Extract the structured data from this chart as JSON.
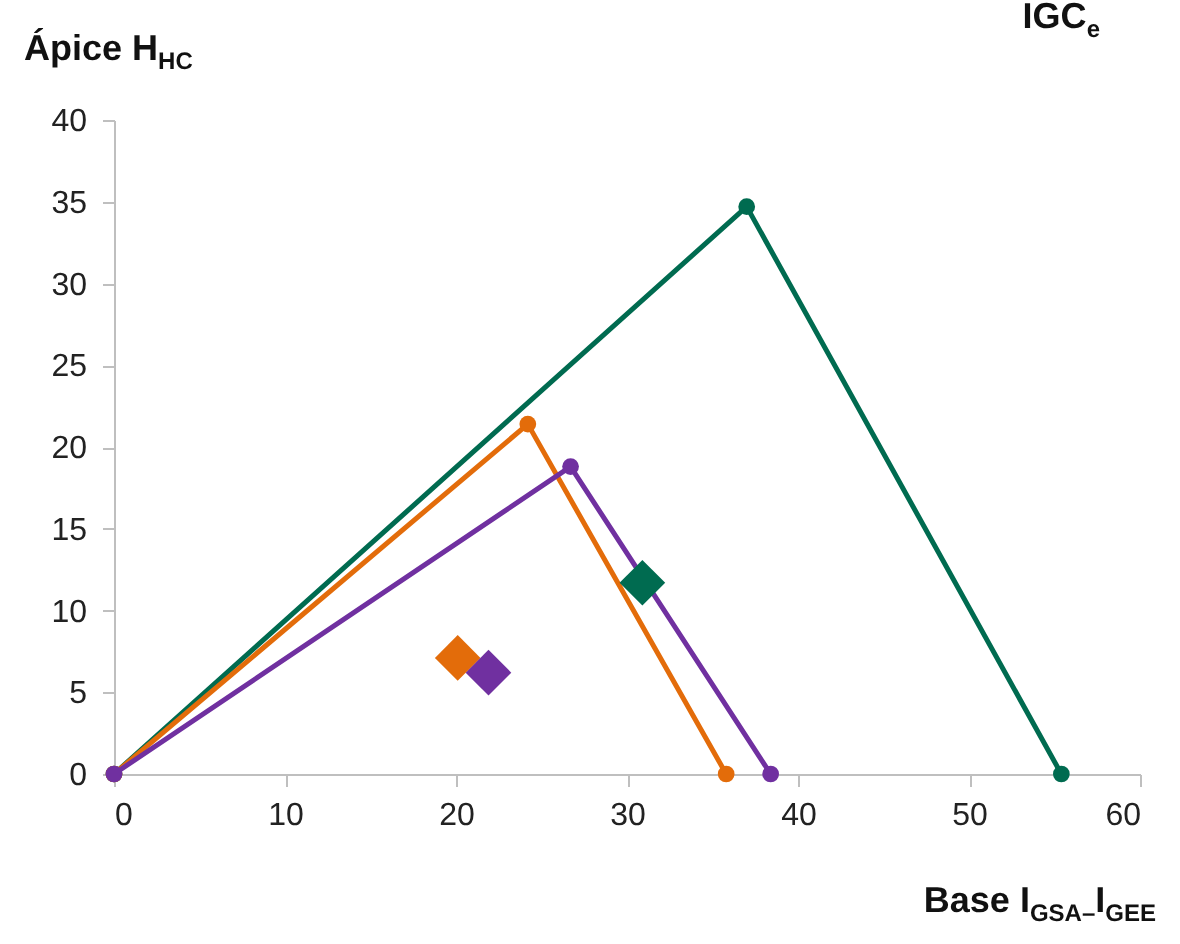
{
  "chart_data": {
    "type": "line",
    "xlabel": "Base I$_{GSA–}$I$_{GEE}$",
    "ylabel": "Ápice H$_{HC}$",
    "annotations": [
      "IGC$_{e}$"
    ],
    "xlim": [
      0,
      60
    ],
    "xticks": [
      0,
      10,
      20,
      30,
      40,
      50,
      60
    ],
    "ylim": [
      0,
      40
    ],
    "yticks": [
      0,
      5,
      10,
      15,
      20,
      25,
      30,
      35,
      40
    ],
    "grid": false,
    "series": [
      {
        "marker": "circle",
        "color": "#006b50",
        "x": [
          0,
          37,
          55.4
        ],
        "values": [
          0,
          34.7,
          0
        ]
      },
      {
        "marker": "circle",
        "color": "#e36c0a",
        "x": [
          0,
          24.2,
          35.8
        ],
        "values": [
          0,
          21.4,
          0
        ]
      },
      {
        "marker": "circle",
        "color": "#7030a0",
        "x": [
          0,
          26.7,
          38.4
        ],
        "values": [
          0,
          18.8,
          0
        ]
      },
      {
        "type": "scatter",
        "marker": "diamond",
        "color": "#006b50",
        "x": [
          30.9
        ],
        "values": [
          11.7
        ]
      },
      {
        "type": "scatter",
        "marker": "diamond",
        "color": "#e36c0a",
        "x": [
          20.1
        ],
        "values": [
          7.1
        ]
      },
      {
        "type": "scatter",
        "marker": "diamond",
        "color": "#7030a0",
        "x": [
          21.9
        ],
        "values": [
          6.2
        ]
      }
    ]
  }
}
